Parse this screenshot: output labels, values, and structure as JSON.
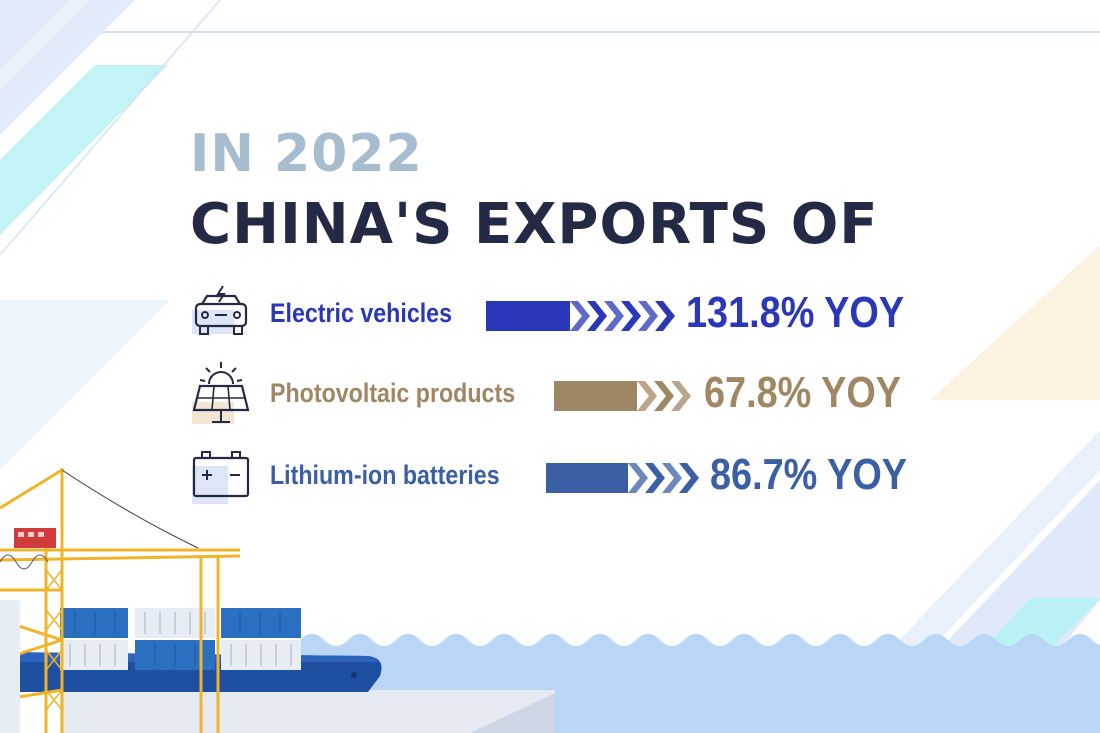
{
  "title": {
    "line1": "IN 2022",
    "line2": "CHINA'S EXPORTS OF"
  },
  "colors": {
    "title_light": "#a6bccf",
    "title_dark": "#242a45",
    "ev": "#2a37b8",
    "pv": "#a08764",
    "battery": "#3a5fa5"
  },
  "chart_data": {
    "type": "bar",
    "title": "IN 2022 CHINA'S EXPORTS OF",
    "categories": [
      "Electric vehicles",
      "Photovoltaic products",
      "Lithium-ion batteries"
    ],
    "values": [
      131.8,
      67.8,
      86.7
    ],
    "value_labels": [
      "131.8% YOY",
      "67.8% YOY",
      "86.7% YOY"
    ],
    "unit": "% YOY",
    "icons": [
      "electric-car-icon",
      "solar-panel-icon",
      "battery-icon"
    ],
    "colors": [
      "#2a37b8",
      "#a08764",
      "#3a5fa5"
    ]
  }
}
